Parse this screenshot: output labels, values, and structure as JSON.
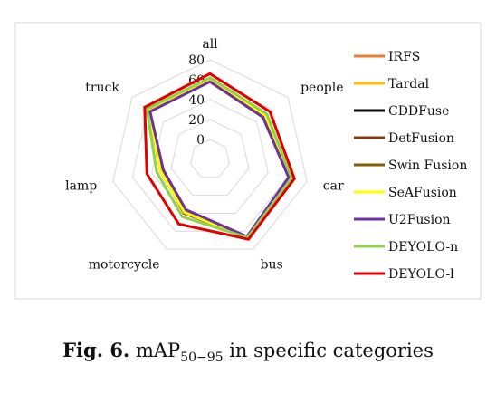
{
  "chart_data": {
    "type": "radar",
    "categories": [
      "all",
      "people",
      "car",
      "bus",
      "motorcycle",
      "lamp",
      "truck"
    ],
    "radial_ticks": [
      0,
      20,
      40,
      60,
      80
    ],
    "rlim": [
      -20,
      80
    ],
    "grid": true,
    "legend_position": "right",
    "series": [
      {
        "name": "IRFS",
        "color": "#ED7D31",
        "values": [
          60,
          50,
          62,
          67,
          38,
          30,
          58
        ]
      },
      {
        "name": "Tardal",
        "color": "#FFC000",
        "values": [
          61,
          51,
          63,
          67,
          39,
          31,
          58
        ]
      },
      {
        "name": "CDDFuse",
        "color": "#000000",
        "values": [
          60,
          50,
          63,
          67,
          39,
          31,
          58
        ]
      },
      {
        "name": "DetFusion",
        "color": "#843C0C",
        "values": [
          59,
          49,
          62,
          66,
          40,
          30,
          57
        ]
      },
      {
        "name": "Swin Fusion",
        "color": "#7F6000",
        "values": [
          60,
          50,
          62,
          67,
          39,
          31,
          58
        ]
      },
      {
        "name": "SeAFusion",
        "color": "#FFFF00",
        "values": [
          61,
          51,
          63,
          67,
          39,
          31,
          58
        ]
      },
      {
        "name": "U2Fusion",
        "color": "#7030A0",
        "values": [
          58,
          48,
          61,
          66,
          36,
          28,
          57
        ]
      },
      {
        "name": "DEYOLO-n",
        "color": "#92D050",
        "values": [
          62,
          53,
          64,
          67,
          44,
          35,
          61
        ]
      },
      {
        "name": "DEYOLO-l",
        "color": "#E00000",
        "values": [
          66,
          57,
          67,
          69,
          52,
          45,
          64
        ]
      }
    ]
  },
  "caption": {
    "label": "Fig. 6.",
    "text_prefix": "mAP",
    "subscript": "50−95",
    "text_suffix": " in specific categories"
  }
}
